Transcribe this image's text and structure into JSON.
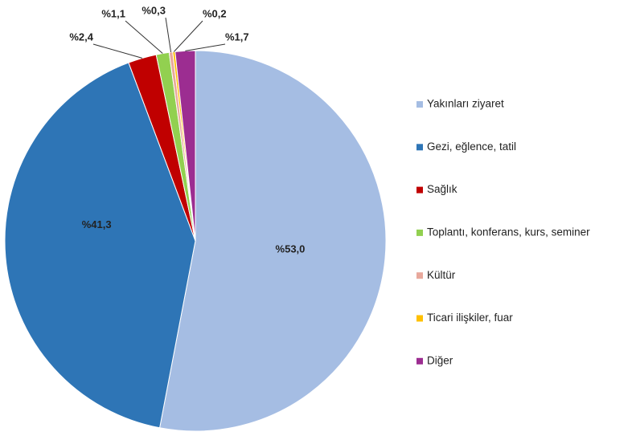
{
  "chart_data": {
    "type": "pie",
    "categories": [
      "Yakınları ziyaret",
      "Gezi, eğlence, tatil",
      "Sağlık",
      "Toplantı, konferans, kurs, seminer",
      "Kültür",
      "Ticari ilişkiler, fuar",
      "Diğer"
    ],
    "values": [
      53.0,
      41.3,
      2.4,
      1.1,
      0.3,
      0.2,
      1.7
    ],
    "value_labels": [
      "%53,0",
      "%41,3",
      "%2,4",
      "%1,1",
      "%0,3",
      "%0,2",
      "%1,7"
    ],
    "colors": [
      "#a5bde3",
      "#2e75b6",
      "#c00000",
      "#92d050",
      "#e8a89c",
      "#ffc000",
      "#9c2d91"
    ],
    "legend": "right"
  }
}
